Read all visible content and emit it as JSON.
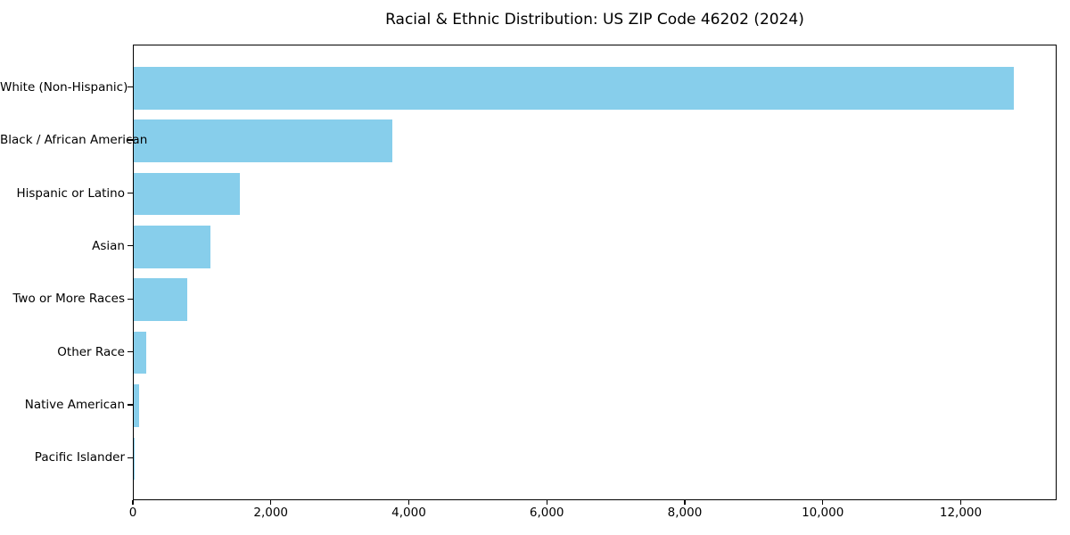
{
  "chart_data": {
    "type": "bar",
    "orientation": "horizontal",
    "title": "Racial & Ethnic Distribution: US ZIP Code 46202 (2024)",
    "categories": [
      "White (Non-Hispanic)",
      "Black / African American",
      "Hispanic or Latino",
      "Asian",
      "Two or More Races",
      "Other Race",
      "Native American",
      "Pacific Islander"
    ],
    "values": [
      12750,
      3750,
      1540,
      1115,
      775,
      180,
      75,
      10
    ],
    "xlabel": "",
    "ylabel": "",
    "xlim": [
      0,
      13390
    ],
    "x_ticks": [
      0,
      2000,
      4000,
      6000,
      8000,
      10000,
      12000
    ],
    "x_tick_labels": [
      "0",
      "2,000",
      "4,000",
      "6,000",
      "8,000",
      "10,000",
      "12,000"
    ],
    "bar_color": "#87CEEB",
    "axis_color": "#000000",
    "background_color": "#FFFFFF",
    "grid": false,
    "legend": null
  }
}
